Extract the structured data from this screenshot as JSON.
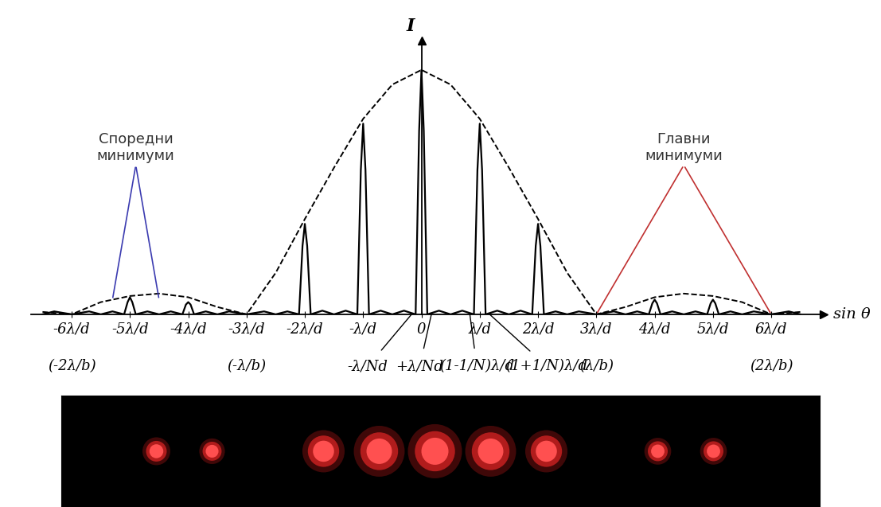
{
  "chart_data": {
    "type": "line",
    "xlabel": "sin θ",
    "ylabel": "I",
    "xlim": [
      -6.7,
      6.9
    ],
    "ylim": [
      0,
      1.12
    ],
    "tick_labels": "x",
    "xticks": [
      {
        "value": -6,
        "label": "-6λ/d"
      },
      {
        "value": -5,
        "label": "-5λ/d"
      },
      {
        "value": -4,
        "label": "-4λ/d"
      },
      {
        "value": -3,
        "label": "-3λ/d"
      },
      {
        "value": -2,
        "label": "-2λ/d"
      },
      {
        "value": -1,
        "label": "-λ/d"
      },
      0,
      {
        "value": 1,
        "label": "λ/d"
      },
      {
        "value": 2,
        "label": "2λ/d"
      },
      {
        "value": 3,
        "label": "3λ/d"
      },
      {
        "value": 4,
        "label": "4λ/d"
      },
      {
        "value": 5,
        "label": "5λ/d"
      },
      {
        "value": 6,
        "label": "6λ/d"
      }
    ],
    "secondary_xticks": [
      {
        "value": -6,
        "label": "(-2λ/b)"
      },
      {
        "value": -3,
        "label": "(-λ/b)"
      },
      {
        "value": 3,
        "label": "(λ/b)"
      },
      {
        "value": 6,
        "label": "(2λ/b)"
      }
    ],
    "series": [
      {
        "color": "#000000",
        "line_style": "solid",
        "x": [
          -6.5,
          -6.3,
          -6.0,
          -5.7,
          -5.5,
          -5.3,
          -5.1,
          -5.04,
          -5.0,
          -4.96,
          -4.9,
          -4.7,
          -4.5,
          -4.3,
          -4.1,
          -4.04,
          -4.0,
          -3.96,
          -3.9,
          -3.7,
          -3.5,
          -3.3,
          -3.0,
          -2.7,
          -2.5,
          -2.3,
          -2.1,
          -2.04,
          -2.0,
          -1.96,
          -1.9,
          -1.7,
          -1.5,
          -1.3,
          -1.1,
          -1.04,
          -1.0,
          -0.96,
          -0.9,
          -0.7,
          -0.5,
          -0.3,
          -0.1,
          -0.04,
          0,
          0.04,
          0.1,
          0.3,
          0.5,
          0.7,
          0.9,
          0.96,
          1.0,
          1.04,
          1.1,
          1.3,
          1.5,
          1.7,
          1.9,
          1.96,
          2.0,
          2.04,
          2.1,
          2.3,
          2.5,
          2.7,
          3.0,
          3.3,
          3.5,
          3.7,
          3.9,
          3.96,
          4.0,
          4.04,
          4.1,
          4.3,
          4.5,
          4.7,
          4.9,
          4.96,
          5.0,
          5.04,
          5.1,
          5.3,
          5.5,
          5.7,
          6.0,
          6.3,
          6.5
        ],
        "values": [
          0,
          0.012,
          0,
          0.012,
          0,
          0.012,
          0,
          0.05,
          0.07,
          0.05,
          0,
          0.012,
          0,
          0.012,
          0,
          0.04,
          0.05,
          0.04,
          0,
          0.012,
          0,
          0.012,
          0,
          0.012,
          0,
          0.012,
          0,
          0.28,
          0.37,
          0.28,
          0,
          0.015,
          0,
          0.015,
          0,
          0.59,
          0.78,
          0.59,
          0,
          0.015,
          0,
          0.015,
          0,
          0.75,
          1.0,
          0.75,
          0,
          0.015,
          0,
          0.015,
          0,
          0.59,
          0.78,
          0.59,
          0,
          0.015,
          0,
          0.015,
          0,
          0.28,
          0.37,
          0.28,
          0,
          0.012,
          0,
          0.012,
          0,
          0.012,
          0,
          0.012,
          0,
          0.045,
          0.06,
          0.045,
          0,
          0.012,
          0,
          0.012,
          0,
          0.045,
          0.06,
          0.045,
          0,
          0.012,
          0,
          0.012,
          0,
          0.012,
          0
        ]
      },
      {
        "color": "#000000",
        "line_style": "dashed",
        "x": [
          -6.5,
          -6.0,
          -5.5,
          -5.0,
          -4.5,
          -4.0,
          -3.5,
          -3.0,
          -2.5,
          -2.0,
          -1.5,
          -1.0,
          -0.5,
          0,
          0.5,
          1.0,
          1.5,
          2.0,
          2.5,
          3.0,
          3.5,
          4.0,
          4.5,
          5.0,
          5.5,
          6.0,
          6.5
        ],
        "values": [
          0.01,
          0,
          0.05,
          0.075,
          0.085,
          0.07,
          0.03,
          0,
          0.17,
          0.39,
          0.6,
          0.8,
          0.94,
          1.0,
          0.94,
          0.8,
          0.6,
          0.39,
          0.17,
          0,
          0.03,
          0.07,
          0.085,
          0.075,
          0.05,
          0,
          0.01
        ]
      }
    ],
    "annotations": [
      {
        "text": "Споредни\nминимуми",
        "color": "#3b3bb0",
        "points_to": [
          [
            -5.3,
            0.06
          ],
          [
            -4.5,
            0.06
          ]
        ]
      },
      {
        "text": "Главни\nминимуми",
        "color": "#c03030",
        "points_to": [
          [
            3,
            0
          ],
          [
            6,
            0
          ]
        ]
      },
      {
        "text": "-λ/Nd",
        "points_to": [
          [
            -0.17,
            0
          ]
        ]
      },
      {
        "text": "+λ/Nd",
        "points_to": [
          [
            0.17,
            0
          ]
        ]
      },
      {
        "text": "(1-1/N)λ/d",
        "points_to": [
          [
            0.83,
            0
          ]
        ]
      },
      {
        "text": "(1+1/N)λ/d",
        "points_to": [
          [
            1.17,
            0
          ]
        ]
      }
    ]
  }
}
